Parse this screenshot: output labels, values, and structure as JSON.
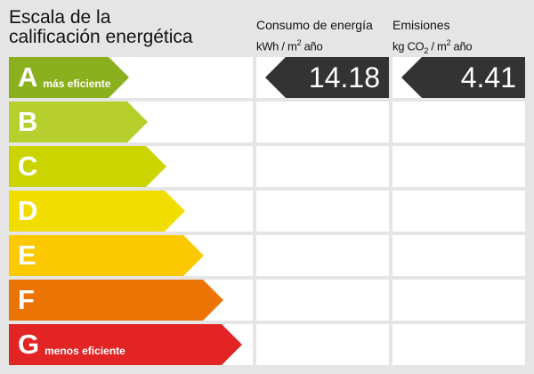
{
  "title_line1": "Escala de la",
  "title_line2": "calificación energética",
  "consumo": {
    "label": "Consumo de energía",
    "unit_pre": "kWh / m",
    "unit_sup": "2",
    "unit_post": " año",
    "value": "14.18",
    "rating": "A"
  },
  "emisiones": {
    "label": "Emisiones",
    "unit_pre": "kg CO",
    "unit_sub": "2",
    "unit_mid": " / m",
    "unit_sup": "2",
    "unit_post": " año",
    "value": "4.41",
    "rating": "A"
  },
  "ratings": [
    {
      "letter": "A",
      "label": "más eficiente",
      "color": "#8bb01e"
    },
    {
      "letter": "B",
      "label": "",
      "color": "#b7cf2d"
    },
    {
      "letter": "C",
      "label": "",
      "color": "#ccd400"
    },
    {
      "letter": "D",
      "label": "",
      "color": "#f1de00"
    },
    {
      "letter": "E",
      "label": "",
      "color": "#fcc900"
    },
    {
      "letter": "F",
      "label": "",
      "color": "#ec7404"
    },
    {
      "letter": "G",
      "label": "menos eficiente",
      "color": "#e32425"
    }
  ],
  "value_badge_color": "#333333"
}
